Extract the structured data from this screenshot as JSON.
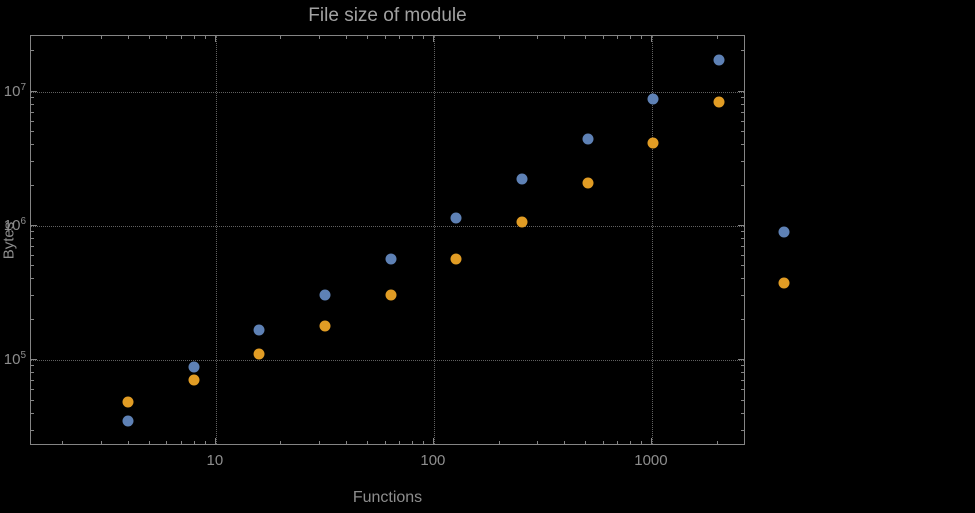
{
  "page": {
    "background": "#000000"
  },
  "chart_data": {
    "type": "scatter",
    "title": "File size of module",
    "xlabel": "Functions",
    "ylabel": "Bytes",
    "xscale": "log",
    "yscale": "log",
    "xlim": [
      1.42,
      2700
    ],
    "ylim": [
      23000,
      26000000
    ],
    "grid": "dotted-major",
    "legend": "none",
    "clipping": false,
    "xticks": [
      10,
      100,
      1000
    ],
    "xtick_labels": [
      "10",
      "100",
      "1000"
    ],
    "ytick_exponents": [
      5,
      6,
      7
    ],
    "ytick_base": "10",
    "x": [
      4,
      8,
      16,
      32,
      64,
      128,
      256,
      512,
      1024,
      2048,
      4096
    ],
    "series": [
      {
        "name": "series-1-blue",
        "color": "#5e81b5",
        "values": [
          35000,
          87000,
          165000,
          300000,
          560000,
          1120000,
          2200000,
          4400000,
          8700000,
          17000000,
          880000
        ]
      },
      {
        "name": "series-2-orange",
        "color": "#e19c24",
        "values": [
          48000,
          70000,
          110000,
          178000,
          300000,
          560000,
          1060000,
          2050000,
          4050000,
          8300000,
          370000
        ]
      }
    ]
  }
}
